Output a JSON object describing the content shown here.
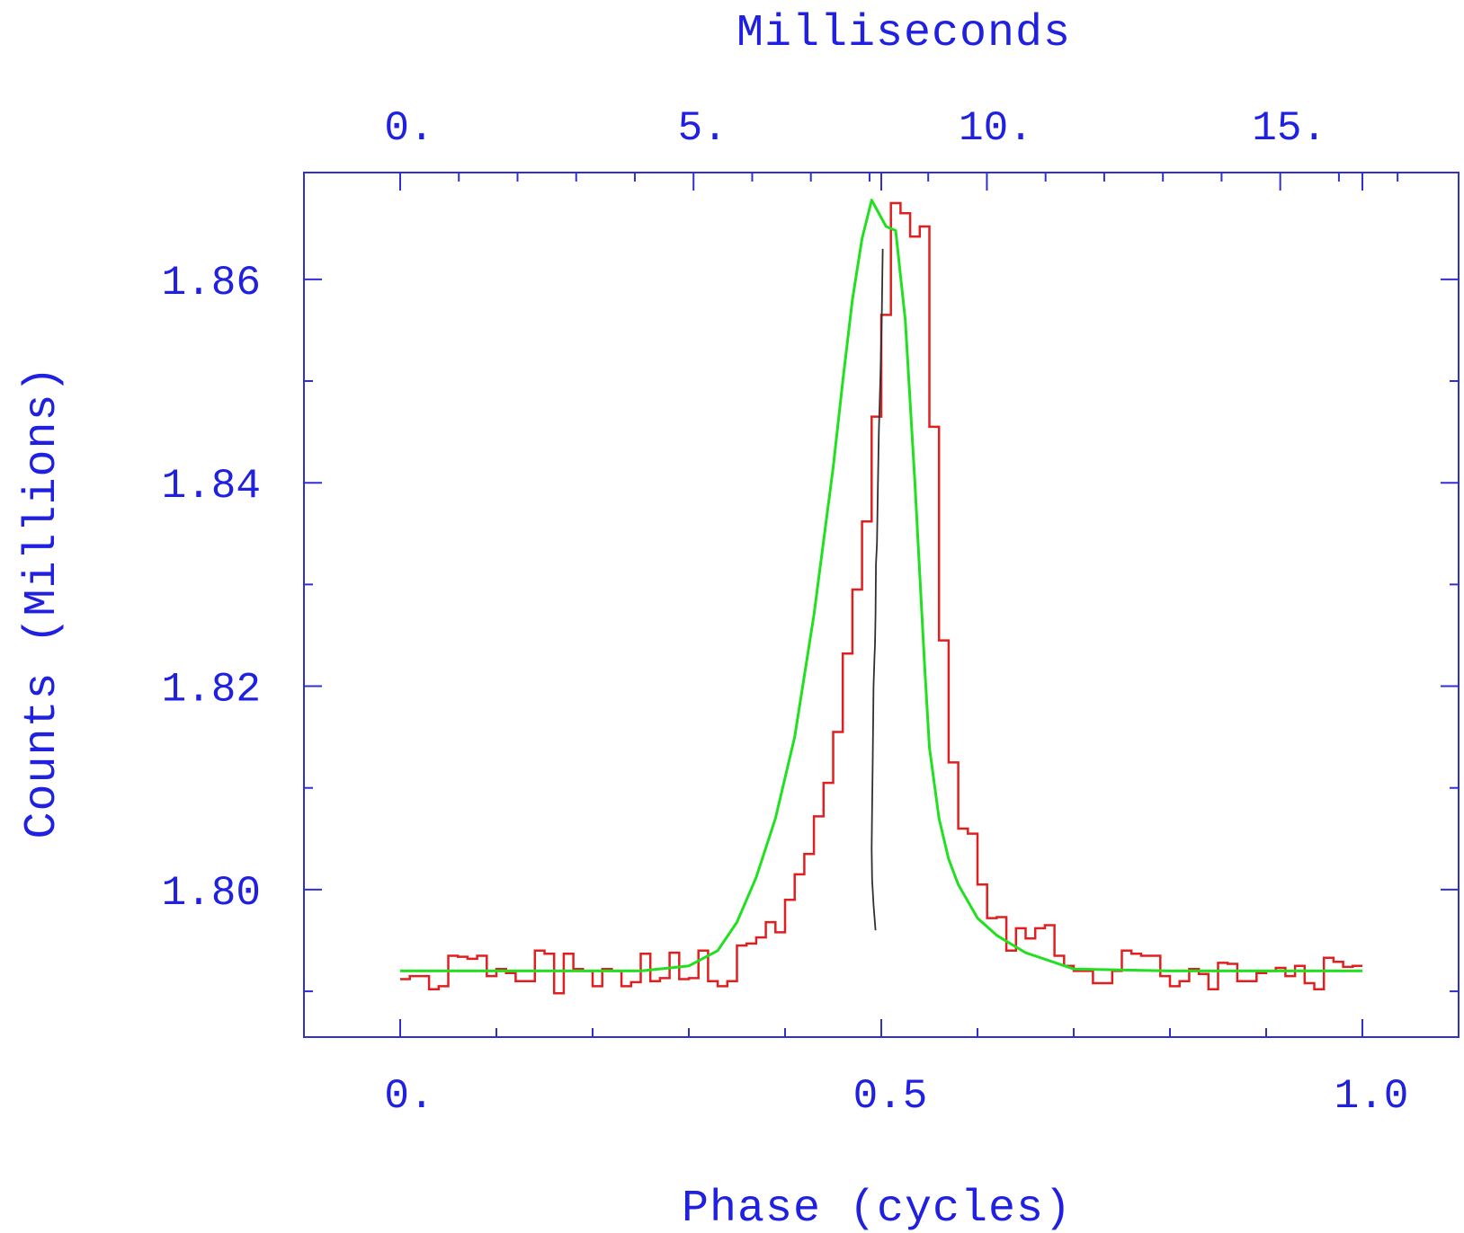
{
  "chart_data": {
    "type": "line",
    "xlabel": "Phase (cycles)",
    "x2label": "Milliseconds",
    "ylabel": "Counts (Millions)",
    "xlim": [
      -0.1,
      1.1
    ],
    "x2lim": [
      -1.64,
      18.04
    ],
    "ylim": [
      1.7855,
      1.8705
    ],
    "x_ticks": [
      {
        "value": 0.0,
        "label": "0."
      },
      {
        "value": 0.5,
        "label": "0.5"
      },
      {
        "value": 1.0,
        "label": "1.0"
      }
    ],
    "x_minor_ticks": [
      0.1,
      0.2,
      0.3,
      0.4,
      0.6,
      0.7,
      0.8,
      0.9
    ],
    "x2_ticks": [
      {
        "value": 0,
        "label": "0."
      },
      {
        "value": 5,
        "label": "5."
      },
      {
        "value": 10,
        "label": "10."
      },
      {
        "value": 15,
        "label": "15."
      }
    ],
    "x2_minor_ticks": [
      1,
      2,
      3,
      4,
      6,
      7,
      8,
      9,
      11,
      12,
      13,
      14,
      16,
      17
    ],
    "y_ticks": [
      {
        "value": 1.8,
        "label": "1.80"
      },
      {
        "value": 1.82,
        "label": "1.82"
      },
      {
        "value": 1.84,
        "label": "1.84"
      },
      {
        "value": 1.86,
        "label": "1.86"
      }
    ],
    "y_minor_ticks": [
      1.79,
      1.81,
      1.83,
      1.85
    ],
    "grid": false,
    "frame_color": "#3030d0",
    "text_color": "#2020e0",
    "series": [
      {
        "type": "histogram",
        "color": "#e02020",
        "bin_width": 0.01,
        "x_start": 0.0,
        "values": [
          1.7912,
          1.7915,
          1.7915,
          1.7902,
          1.7905,
          1.7935,
          1.7934,
          1.7932,
          1.7935,
          1.7915,
          1.7922,
          1.7918,
          1.791,
          1.791,
          1.794,
          1.7937,
          1.7898,
          1.7937,
          1.7922,
          1.792,
          1.7905,
          1.7922,
          1.792,
          1.7905,
          1.7909,
          1.7937,
          1.791,
          1.7913,
          1.7938,
          1.7912,
          1.7913,
          1.794,
          1.791,
          1.7905,
          1.791,
          1.7945,
          1.7947,
          1.7953,
          1.7968,
          1.7958,
          1.799,
          1.8015,
          1.8035,
          1.8072,
          1.8105,
          1.8155,
          1.8232,
          1.8295,
          1.8362,
          1.8465,
          1.8565,
          1.8675,
          1.8665,
          1.8642,
          1.8652,
          1.8455,
          1.8245,
          1.8125,
          1.806,
          1.8055,
          1.8005,
          1.7972,
          1.7973,
          1.794,
          1.7962,
          1.7952,
          1.7962,
          1.7965,
          1.7935,
          1.7925,
          1.792,
          1.792,
          1.7908,
          1.7908,
          1.792,
          1.794,
          1.7937,
          1.7935,
          1.7935,
          1.7915,
          1.7905,
          1.791,
          1.7922,
          1.7917,
          1.7902,
          1.7928,
          1.7927,
          1.791,
          1.791,
          1.7918,
          1.792,
          1.7923,
          1.7915,
          1.7925,
          1.7908,
          1.7902,
          1.7933,
          1.7929,
          1.7924,
          1.7925
        ]
      },
      {
        "type": "line",
        "color": "#20e020",
        "x": [
          0.0,
          0.1,
          0.2,
          0.25,
          0.3,
          0.33,
          0.35,
          0.37,
          0.39,
          0.41,
          0.43,
          0.45,
          0.46,
          0.47,
          0.48,
          0.49,
          0.505,
          0.515,
          0.525,
          0.535,
          0.545,
          0.55,
          0.56,
          0.57,
          0.58,
          0.6,
          0.62,
          0.65,
          0.7,
          0.8,
          0.9,
          1.0
        ],
        "y": [
          1.792,
          1.792,
          1.792,
          1.792,
          1.7925,
          1.794,
          1.7968,
          1.8012,
          1.807,
          1.815,
          1.827,
          1.8415,
          1.85,
          1.858,
          1.864,
          1.8678,
          1.8652,
          1.8648,
          1.856,
          1.84,
          1.822,
          1.814,
          1.807,
          1.803,
          1.8005,
          1.7972,
          1.7955,
          1.7938,
          1.7922,
          1.792,
          1.792,
          1.792
        ]
      },
      {
        "type": "line",
        "color": "#303030",
        "x": [
          0.494,
          0.492,
          0.4905,
          0.49,
          0.4905,
          0.491,
          0.4915,
          0.492,
          0.493,
          0.4935,
          0.494,
          0.4945,
          0.4955,
          0.4965,
          0.4975,
          0.499,
          0.5005,
          0.5015
        ],
        "y": [
          1.796,
          1.7985,
          1.801,
          1.804,
          1.808,
          1.812,
          1.816,
          1.82,
          1.823,
          1.824,
          1.827,
          1.832,
          1.834,
          1.84,
          1.845,
          1.85,
          1.856,
          1.863
        ]
      }
    ]
  }
}
